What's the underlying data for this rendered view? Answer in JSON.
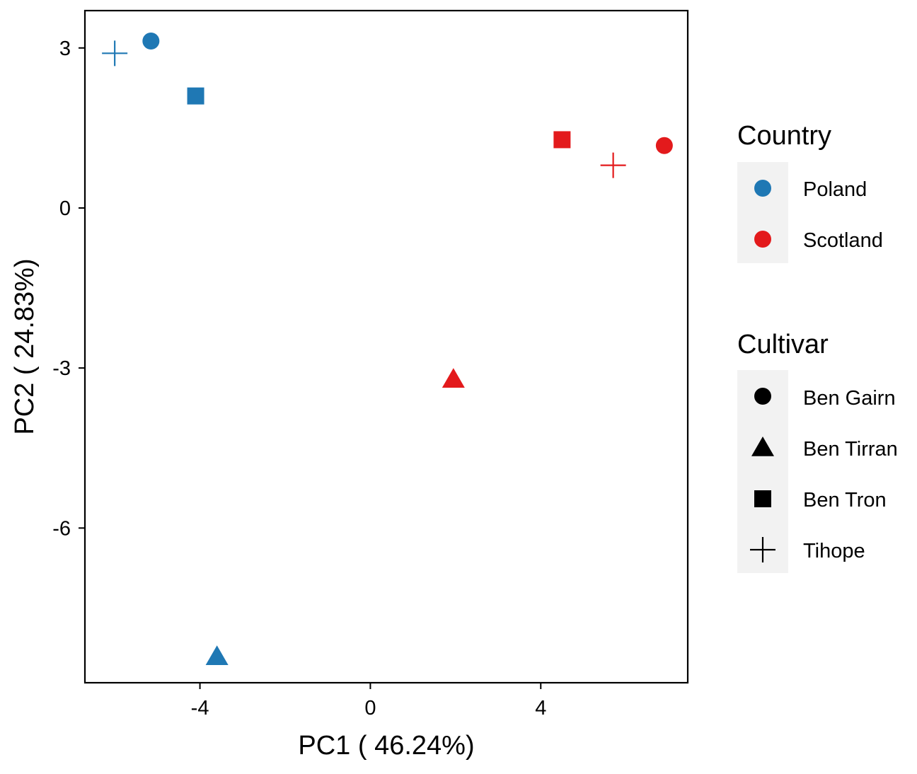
{
  "chart_data": {
    "type": "scatter",
    "xlabel": "PC1 ( 46.24%)",
    "ylabel": "PC2 ( 24.83%)",
    "xlim": [
      -6.7,
      7.45
    ],
    "ylim": [
      -8.9,
      3.7
    ],
    "x_ticks": [
      -4,
      0,
      4
    ],
    "y_ticks": [
      3,
      0,
      -3,
      -6
    ],
    "grid": false,
    "colors": {
      "Poland": "#1F78B4",
      "Scotland": "#E31A1C"
    },
    "legends": [
      {
        "title": "Country",
        "entries": [
          {
            "label": "Poland",
            "shape": "circle",
            "color": "#1F78B4"
          },
          {
            "label": "Scotland",
            "shape": "circle",
            "color": "#E31A1C"
          }
        ]
      },
      {
        "title": "Cultivar",
        "entries": [
          {
            "label": "Ben Gairn",
            "shape": "circle",
            "color": "#000000"
          },
          {
            "label": "Ben Tirran",
            "shape": "triangle",
            "color": "#000000"
          },
          {
            "label": "Ben Tron",
            "shape": "square",
            "color": "#000000"
          },
          {
            "label": "Tihope",
            "shape": "plus",
            "color": "#000000"
          }
        ]
      }
    ],
    "points": [
      {
        "country": "Poland",
        "cultivar": "Tihope",
        "shape": "plus",
        "x": -6.0,
        "y": 2.9
      },
      {
        "country": "Poland",
        "cultivar": "Ben Gairn",
        "shape": "circle",
        "x": -5.15,
        "y": 3.13
      },
      {
        "country": "Poland",
        "cultivar": "Ben Tron",
        "shape": "square",
        "x": -4.1,
        "y": 2.1
      },
      {
        "country": "Poland",
        "cultivar": "Ben Tirran",
        "shape": "triangle",
        "x": -3.6,
        "y": -8.4
      },
      {
        "country": "Scotland",
        "cultivar": "Ben Tron",
        "shape": "square",
        "x": 4.5,
        "y": 1.28
      },
      {
        "country": "Scotland",
        "cultivar": "Tihope",
        "shape": "plus",
        "x": 5.7,
        "y": 0.8
      },
      {
        "country": "Scotland",
        "cultivar": "Ben Gairn",
        "shape": "circle",
        "x": 6.9,
        "y": 1.17
      },
      {
        "country": "Scotland",
        "cultivar": "Ben Tirran",
        "shape": "triangle",
        "x": 1.95,
        "y": -3.2
      }
    ]
  }
}
